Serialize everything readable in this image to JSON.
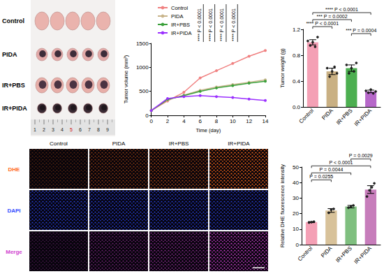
{
  "photo": {
    "row_labels": [
      "Control",
      "PIDA",
      "IR+PBS",
      "IR+PIDA"
    ],
    "ruler_labels": [
      "1",
      "2",
      "3",
      "4",
      "5",
      "6",
      "7",
      "8",
      "9"
    ]
  },
  "microscopy": {
    "columns": [
      "Control",
      "PIDA",
      "IR+PBS",
      "IR+PIDA"
    ],
    "rows": [
      "DHE",
      "DAPI",
      "Merge"
    ]
  },
  "chart_data": [
    {
      "type": "line",
      "xlabel": "Time (day)",
      "ylabel": "Tumor volume (mm³)",
      "x": [
        0,
        2,
        4,
        6,
        8,
        10,
        12,
        14
      ],
      "xlim": [
        0,
        14
      ],
      "xticks": [
        0,
        2,
        4,
        6,
        8,
        10,
        12,
        14
      ],
      "ylim": [
        0,
        1500
      ],
      "yticks": [
        0,
        500,
        1000,
        1500
      ],
      "grid": false,
      "legend": "upper left",
      "marker": "circle",
      "series": [
        {
          "name": "Control",
          "color": "#f08080",
          "values": [
            100,
            300,
            480,
            780,
            930,
            1080,
            1230,
            1350
          ]
        },
        {
          "name": "PIDA",
          "color": "#c8b48a",
          "values": [
            100,
            320,
            420,
            520,
            590,
            640,
            690,
            740
          ]
        },
        {
          "name": "IR+PBS",
          "color": "#3aa03a",
          "values": [
            100,
            330,
            410,
            500,
            570,
            620,
            670,
            710
          ]
        },
        {
          "name": "IR+PIDA",
          "color": "#9b30ff",
          "values": [
            100,
            350,
            390,
            410,
            390,
            370,
            340,
            310
          ]
        }
      ],
      "annotations": [
        {
          "text": "**** P < 0.0001"
        },
        {
          "text": "**** P < 0.0001"
        },
        {
          "text": "**** P < 0.0001"
        },
        {
          "text": "**** P < 0.0001"
        }
      ]
    },
    {
      "type": "bar",
      "ylabel": "Tumor weight (g)",
      "categories": [
        "Control",
        "PIDA",
        "IR+PBS",
        "IR+PIDA"
      ],
      "values": [
        1.0,
        0.55,
        0.6,
        0.24
      ],
      "errors": [
        0.04,
        0.05,
        0.05,
        0.02
      ],
      "points": [
        [
          1.02,
          0.95,
          1.0,
          0.93,
          1.08
        ],
        [
          0.6,
          0.47,
          0.55,
          0.62,
          0.52
        ],
        [
          0.65,
          0.52,
          0.6,
          0.55,
          0.68
        ],
        [
          0.25,
          0.22,
          0.27,
          0.21,
          0.24
        ]
      ],
      "colors": [
        "#f4a0b5",
        "#c9b083",
        "#4caf50",
        "#b668c9"
      ],
      "ylim": [
        0,
        1.2
      ],
      "yticks": [
        {
          "value": 0,
          "label": "0.0"
        },
        0.4,
        0.8,
        1.2
      ],
      "grid": false,
      "annotations": [
        {
          "groups": [
            "IR+PBS",
            "IR+PIDA"
          ],
          "text": "*** P = 0.0004"
        },
        {
          "groups": [
            "Control",
            "PIDA"
          ],
          "text": "**** P < 0.0001"
        },
        {
          "groups": [
            "Control",
            "IR+PBS"
          ],
          "text": "*** P = 0.0002"
        },
        {
          "groups": [
            "Control",
            "IR+PIDA"
          ],
          "text": "**** P < 0.0001"
        }
      ]
    },
    {
      "type": "bar",
      "ylabel": "Relative DHE fluorescence intensity",
      "categories": [
        "Control",
        "PIDA",
        "IR+PBS",
        "IR+PIDA"
      ],
      "values": [
        14.5,
        22,
        24.5,
        35.5
      ],
      "errors": [
        0.3,
        1.2,
        0.8,
        2.5
      ],
      "points": [
        [
          14.2,
          14.5,
          14.8
        ],
        [
          20.5,
          22.5,
          23
        ],
        [
          23.8,
          24.5,
          25.3
        ],
        [
          31,
          35,
          37,
          39.5
        ]
      ],
      "colors": [
        "#f4a0b5",
        "#d8c29a",
        "#7fbf7f",
        "#c77dbb"
      ],
      "ylim": [
        0,
        50
      ],
      "yticks": [
        0,
        10,
        20,
        30,
        40,
        50
      ],
      "grid": false,
      "annotations": [
        {
          "groups": [
            "Control",
            "PIDA"
          ],
          "text": "P = 0.0255"
        },
        {
          "groups": [
            "Control",
            "IR+PBS"
          ],
          "text": "P = 0.0044"
        },
        {
          "groups": [
            "Control",
            "IR+PIDA"
          ],
          "text": "P < 0.0001"
        },
        {
          "groups": [
            "IR+PBS",
            "IR+PIDA"
          ],
          "text": "P = 0.0029"
        }
      ]
    }
  ]
}
